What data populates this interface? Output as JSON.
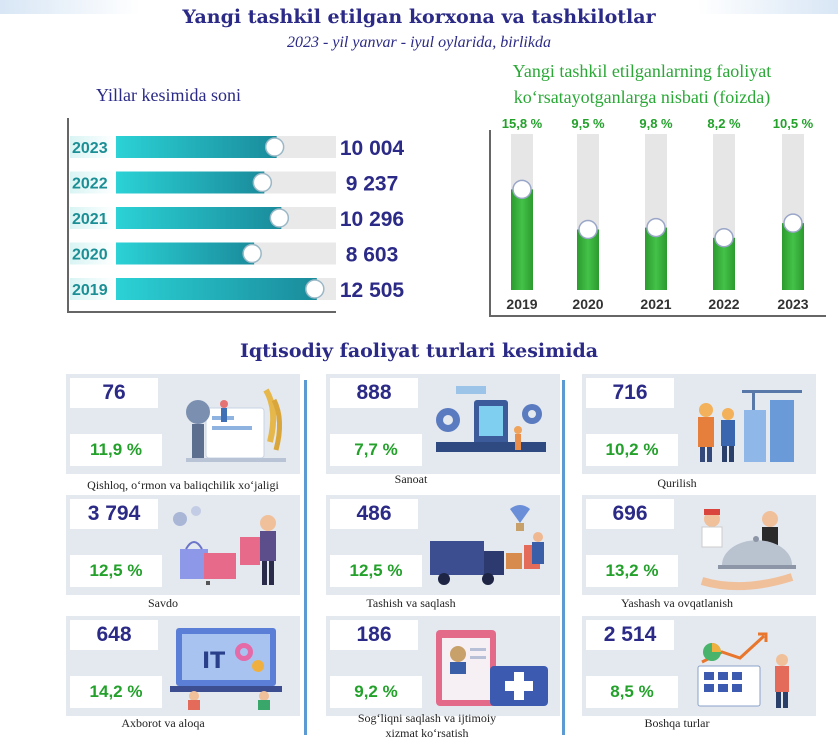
{
  "header": {
    "title": "Yangi tashkil etilgan korxona va tashkilotlar",
    "subtitle": "2023 - yil yanvar - iyul oylarida, birlikda"
  },
  "chart_data": [
    {
      "type": "bar",
      "orientation": "horizontal",
      "title": "Yillar kesimida soni",
      "categories": [
        "2023",
        "2022",
        "2021",
        "2020",
        "2019"
      ],
      "values": [
        10004,
        9237,
        10296,
        8603,
        12505
      ],
      "value_labels": [
        "10 004",
        "9 237",
        "10 296",
        "8 603",
        "12 505"
      ],
      "xlim": [
        0,
        13700
      ]
    },
    {
      "type": "bar",
      "title_lines": [
        "Yangi tashkil etilganlarning faoliyat",
        "ko‘rsatayotganlarga nisbati (foizda)"
      ],
      "categories": [
        "2019",
        "2020",
        "2021",
        "2022",
        "2023"
      ],
      "values": [
        15.8,
        9.5,
        9.8,
        8.2,
        10.5
      ],
      "value_labels": [
        "15,8 %",
        "9,5 %",
        "9,8 %",
        "8,2 %",
        "10,5 %"
      ],
      "ylim": [
        0,
        24.5
      ]
    }
  ],
  "activities": {
    "title": "Iqtisodiy faoliyat turlari kesimida",
    "items": [
      {
        "count": "76",
        "percent": "11,9 %",
        "label": "Qishloq, o‘rmon va baliqchilik xo‘jaligi",
        "icon": "agriculture-illustration"
      },
      {
        "count": "888",
        "percent": "7,7 %",
        "label": "Sanoat",
        "icon": "industry-illustration"
      },
      {
        "count": "716",
        "percent": "10,2 %",
        "label": "Qurilish",
        "icon": "construction-illustration"
      },
      {
        "count": "3 794",
        "percent": "12,5 %",
        "label": "Savdo",
        "icon": "shopping-illustration"
      },
      {
        "count": "486",
        "percent": "12,5 %",
        "label": "Tashish va saqlash",
        "icon": "logistics-illustration"
      },
      {
        "count": "696",
        "percent": "13,2 %",
        "label": "Yashash va ovqatlanish",
        "icon": "catering-illustration"
      },
      {
        "count": "648",
        "percent": "14,2 %",
        "label": "Axborot va aloqa",
        "icon": "it-illustration"
      },
      {
        "count": "186",
        "percent": "9,2 %",
        "label_lines": [
          "Sog‘liqni saqlash va ijtimoiy",
          "xizmat ko‘rsatish"
        ],
        "icon": "health-illustration"
      },
      {
        "count": "2 514",
        "percent": "8,5 %",
        "label": "Boshqa turlar",
        "icon": "analytics-illustration"
      }
    ]
  }
}
